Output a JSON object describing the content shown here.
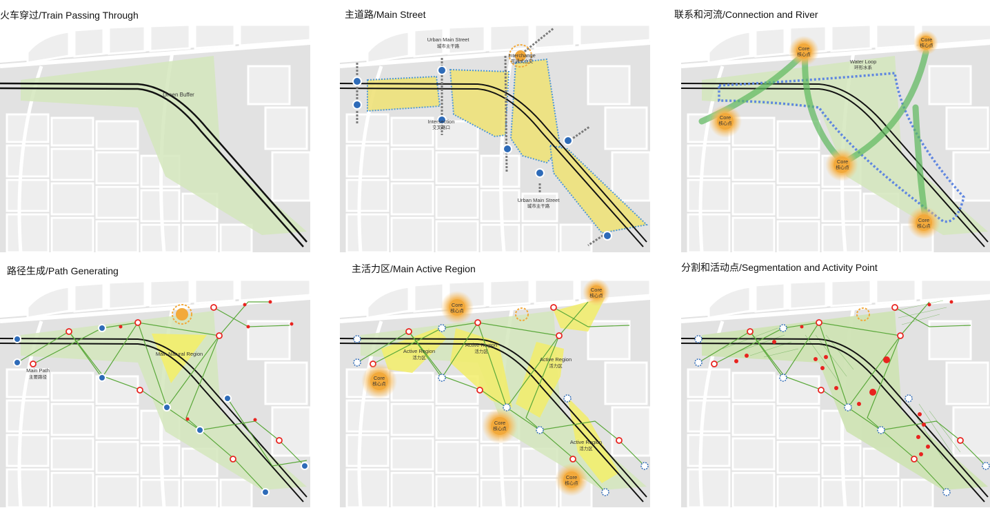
{
  "panels": [
    {
      "title": "火车穿过/Train Passing Through",
      "labels": {
        "green_buffer": "Green Buffer"
      }
    },
    {
      "title": "主道路/Main Street",
      "labels": {
        "urban_main_street_top_en": "Urban Main Street",
        "urban_main_street_top_zh": "城市主干路",
        "interchange_en": "Interchange",
        "interchange_zh": "互通式立交",
        "intersection_en": "Intersection",
        "intersection_zh": "交叉路口",
        "urban_main_street_bottom_en": "Urban Main Street",
        "urban_main_street_bottom_zh": "城市主干路"
      }
    },
    {
      "title": "联系和河流/Connection and River",
      "labels": {
        "core_en": "Core",
        "core_zh": "核心点",
        "water_loop_en": "Water Loop",
        "water_loop_zh": "环形水系"
      }
    },
    {
      "title": "路径生成/Path Generating",
      "labels": {
        "main_path_en": "Main Path",
        "main_path_zh": "主要路径",
        "main_natural_region": "Main Natural Region"
      }
    },
    {
      "title": "主活力区/Main Active Region",
      "labels": {
        "core_en": "Core",
        "core_zh": "核心点",
        "active_region_en": "Active Region",
        "active_region_zh": "活力区"
      }
    },
    {
      "title": "分割和活动点/Segmentation and Activity Point",
      "labels": {}
    }
  ],
  "colors": {
    "green": "#cfe3b4",
    "yellow": "#f3e65a",
    "orange": "#f2a93b",
    "blue": "#2e6bb8",
    "red": "#e8231f",
    "block": "#ebebeb"
  }
}
